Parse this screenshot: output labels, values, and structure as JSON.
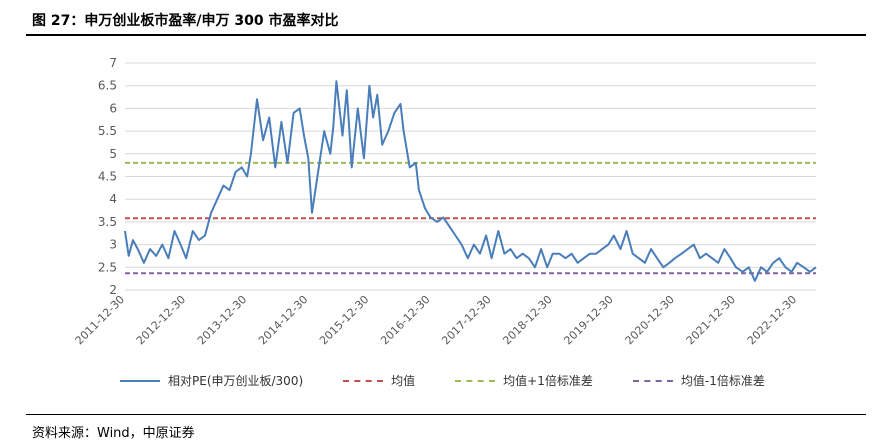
{
  "header": {
    "title": "图 27：申万创业板市盈率/申万 300 市盈率对比"
  },
  "footer": {
    "source": "资料来源：Wind，中原证券"
  },
  "chart_data": {
    "type": "line",
    "ylim": [
      2,
      7
    ],
    "yticks": [
      "2",
      "2.5",
      "3",
      "3.5",
      "4",
      "4.5",
      "5",
      "5.5",
      "6",
      "6.5",
      "7"
    ],
    "x_ticks": [
      "2011-12-30",
      "2012-12-30",
      "2013-12-30",
      "2014-12-30",
      "2015-12-30",
      "2016-12-30",
      "2017-12-30",
      "2018-12-30",
      "2019-12-30",
      "2020-12-30",
      "2021-12-30",
      "2022-12-30"
    ],
    "series": [
      {
        "name": "相对PE(申万创业板/300)",
        "color": "#4A7EBB",
        "style": "solid",
        "x": [
          2011.99,
          2012.05,
          2012.12,
          2012.2,
          2012.3,
          2012.4,
          2012.5,
          2012.6,
          2012.7,
          2012.8,
          2012.9,
          2012.99,
          2013.1,
          2013.2,
          2013.3,
          2013.4,
          2013.5,
          2013.6,
          2013.7,
          2013.8,
          2013.9,
          2013.99,
          2014.05,
          2014.15,
          2014.25,
          2014.35,
          2014.45,
          2014.55,
          2014.65,
          2014.75,
          2014.85,
          2014.92,
          2014.99,
          2015.05,
          2015.15,
          2015.25,
          2015.35,
          2015.4,
          2015.45,
          2015.55,
          2015.62,
          2015.7,
          2015.8,
          2015.9,
          2015.99,
          2016.05,
          2016.12,
          2016.2,
          2016.3,
          2016.4,
          2016.5,
          2016.55,
          2016.6,
          2016.65,
          2016.75,
          2016.8,
          2016.9,
          2016.99,
          2017.1,
          2017.2,
          2017.3,
          2017.4,
          2017.5,
          2017.6,
          2017.7,
          2017.8,
          2017.9,
          2017.99,
          2018.1,
          2018.2,
          2018.3,
          2018.4,
          2018.5,
          2018.6,
          2018.7,
          2018.8,
          2018.9,
          2018.99,
          2019.1,
          2019.2,
          2019.3,
          2019.4,
          2019.5,
          2019.6,
          2019.7,
          2019.8,
          2019.9,
          2019.99,
          2020.1,
          2020.2,
          2020.3,
          2020.4,
          2020.5,
          2020.6,
          2020.7,
          2020.8,
          2020.9,
          2020.99,
          2021.1,
          2021.2,
          2021.3,
          2021.4,
          2021.5,
          2021.6,
          2021.7,
          2021.8,
          2021.9,
          2021.99,
          2022.1,
          2022.2,
          2022.3,
          2022.4,
          2022.5,
          2022.6,
          2022.7,
          2022.8,
          2022.9,
          2022.99,
          2023.1,
          2023.2,
          2023.3
        ],
        "values": [
          3.3,
          2.75,
          3.1,
          2.9,
          2.6,
          2.9,
          2.75,
          3.0,
          2.7,
          3.3,
          3.0,
          2.7,
          3.3,
          3.1,
          3.2,
          3.7,
          4.0,
          4.3,
          4.2,
          4.6,
          4.7,
          4.5,
          5.0,
          6.2,
          5.3,
          5.8,
          4.7,
          5.7,
          4.8,
          5.9,
          6.0,
          5.4,
          4.9,
          3.7,
          4.6,
          5.5,
          5.0,
          5.6,
          6.6,
          5.4,
          6.4,
          4.7,
          6.0,
          4.9,
          6.5,
          5.8,
          6.3,
          5.2,
          5.5,
          5.9,
          6.1,
          5.5,
          5.1,
          4.7,
          4.8,
          4.2,
          3.8,
          3.6,
          3.5,
          3.6,
          3.4,
          3.2,
          3.0,
          2.7,
          3.0,
          2.8,
          3.2,
          2.7,
          3.3,
          2.8,
          2.9,
          2.7,
          2.8,
          2.7,
          2.5,
          2.9,
          2.5,
          2.8,
          2.8,
          2.7,
          2.8,
          2.6,
          2.7,
          2.8,
          2.8,
          2.9,
          3.0,
          3.2,
          2.9,
          3.3,
          2.8,
          2.7,
          2.6,
          2.9,
          2.7,
          2.5,
          2.6,
          2.7,
          2.8,
          2.9,
          3.0,
          2.7,
          2.8,
          2.7,
          2.6,
          2.9,
          2.7,
          2.5,
          2.4,
          2.5,
          2.2,
          2.5,
          2.4,
          2.6,
          2.7,
          2.5,
          2.4,
          2.6,
          2.5,
          2.4,
          2.5
        ]
      },
      {
        "name": "均值",
        "color": "#C0504D",
        "style": "dashed",
        "value": 3.58
      },
      {
        "name": "均值+1倍标准差",
        "color": "#9BBB59",
        "style": "dashed",
        "value": 4.8
      },
      {
        "name": "均值-1倍标准差",
        "color": "#8064A2",
        "style": "dashed",
        "value": 2.37
      }
    ]
  }
}
